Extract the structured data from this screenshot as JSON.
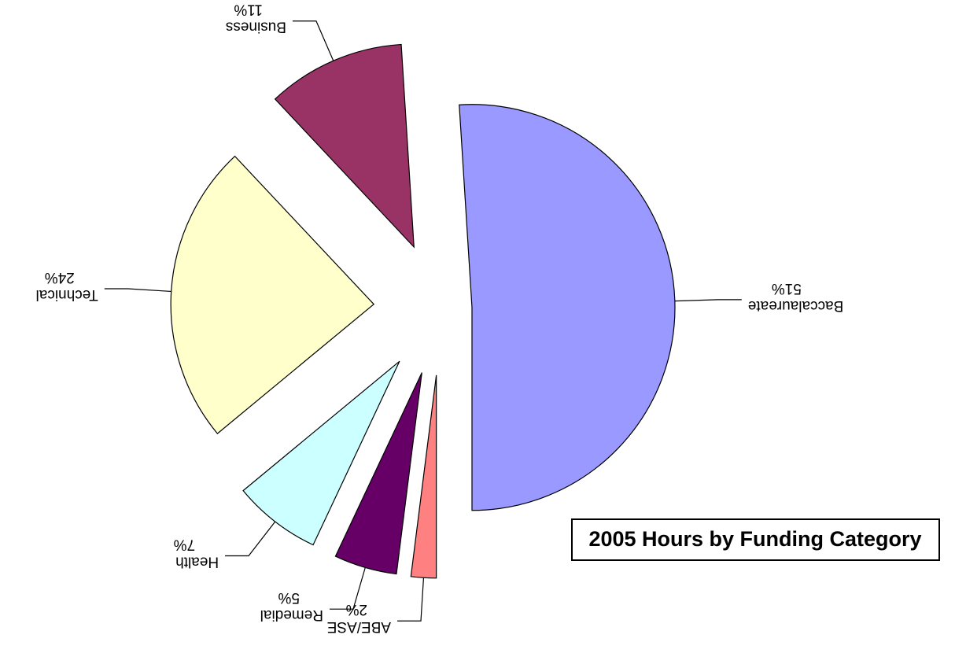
{
  "chart_data": {
    "type": "pie",
    "title": "2005 Hours by Funding Category",
    "categories": [
      "Baccalaureate",
      "Business",
      "Technical",
      "Health",
      "Remedial",
      "ABE/ASE"
    ],
    "values": [
      51,
      11,
      24,
      7,
      5,
      2
    ],
    "value_labels": [
      "51%",
      "11%",
      "24%",
      "7%",
      "5%",
      "2%"
    ],
    "colors": [
      "#9999ff",
      "#993366",
      "#ffffcc",
      "#ccffff",
      "#660066",
      "#ff8080"
    ]
  }
}
